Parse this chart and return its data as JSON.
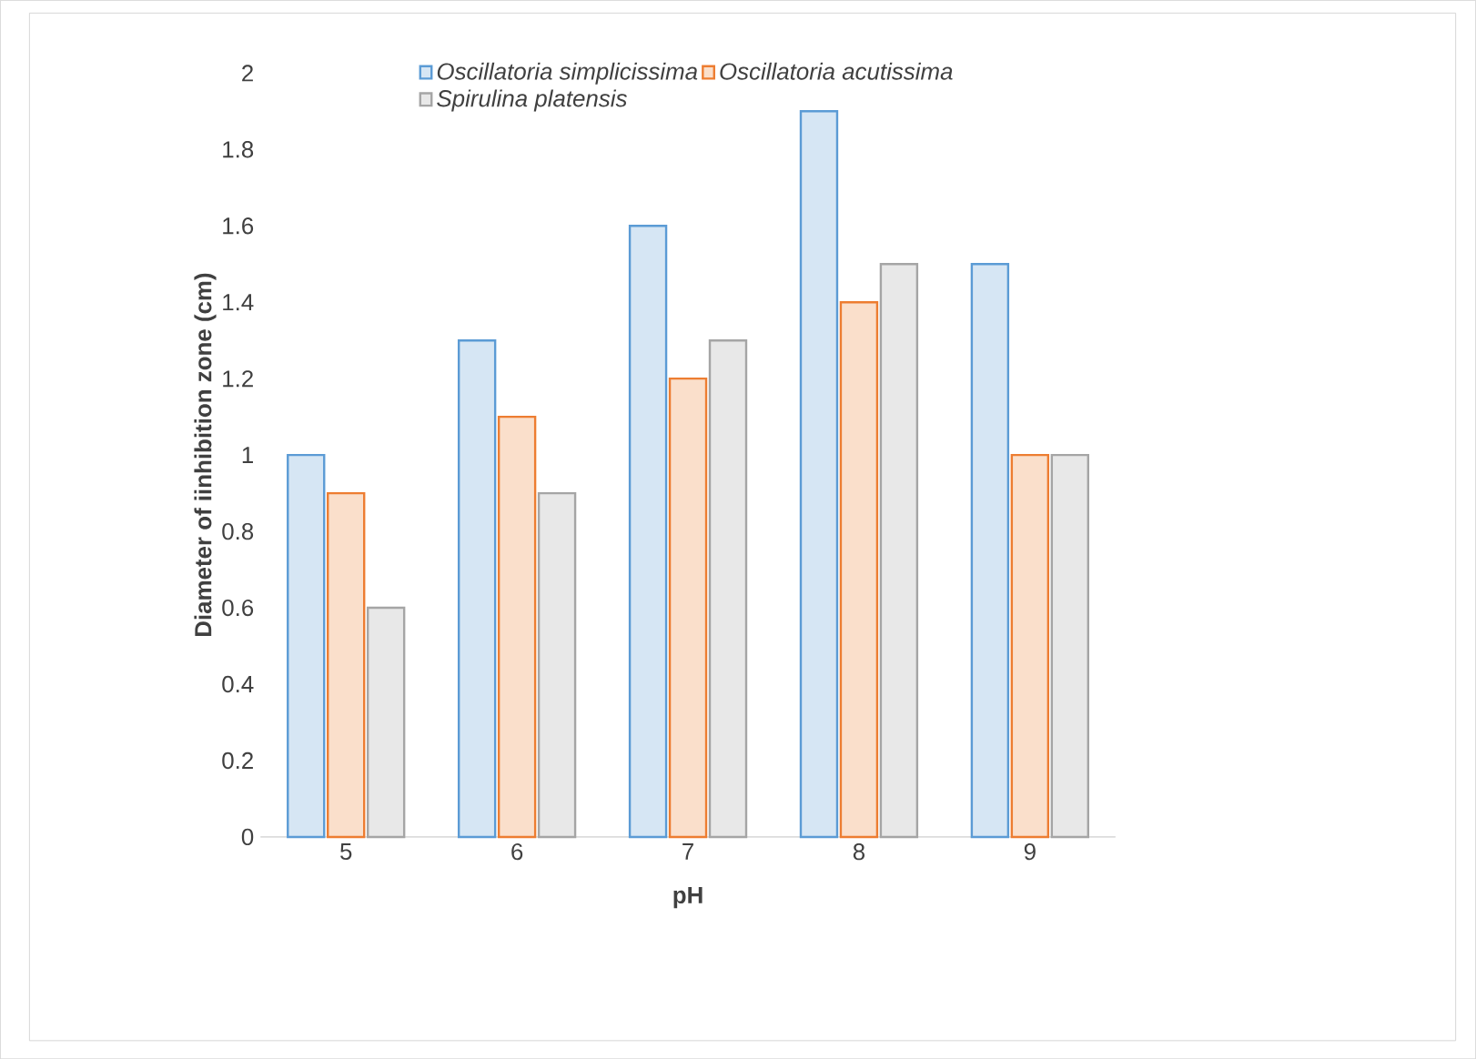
{
  "chart_data": {
    "type": "bar",
    "xlabel": "pH",
    "ylabel": "Diameter  of iinhibition zone (cm)",
    "categories": [
      "5",
      "6",
      "7",
      "8",
      "9"
    ],
    "series": [
      {
        "name": "Oscillatoria simplicissima",
        "color": "#5b9bd5",
        "values": [
          1.0,
          1.3,
          1.6,
          1.9,
          1.5
        ]
      },
      {
        "name": "Oscillatoria acutissima",
        "color": "#ed7d31",
        "values": [
          0.9,
          1.1,
          1.2,
          1.4,
          1.0
        ]
      },
      {
        "name": "Spirulina platensis",
        "color": "#a5a5a5",
        "values": [
          0.6,
          0.9,
          1.3,
          1.5,
          1.0
        ]
      }
    ],
    "ylim": [
      0,
      2
    ],
    "yticks": [
      0,
      0.2,
      0.4,
      0.6,
      0.8,
      1,
      1.2,
      1.4,
      1.6,
      1.8,
      2
    ],
    "grid": false,
    "legend": "top"
  }
}
